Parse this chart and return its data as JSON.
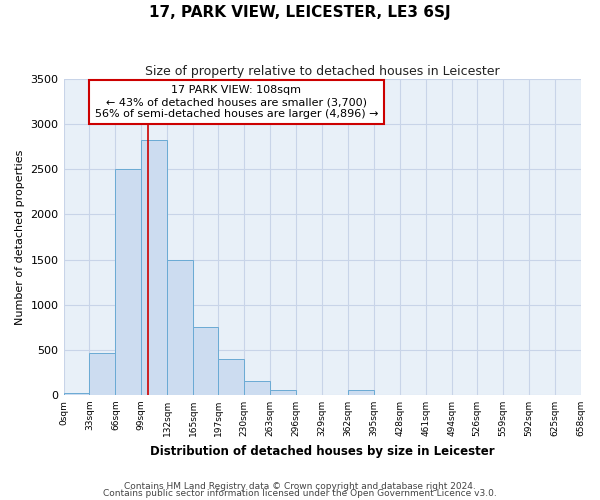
{
  "title": "17, PARK VIEW, LEICESTER, LE3 6SJ",
  "subtitle": "Size of property relative to detached houses in Leicester",
  "xlabel": "Distribution of detached houses by size in Leicester",
  "ylabel": "Number of detached properties",
  "bar_edges": [
    0,
    33,
    66,
    99,
    132,
    165,
    197,
    230,
    263,
    296,
    329,
    362,
    395,
    428,
    461,
    494,
    526,
    559,
    592,
    625,
    658
  ],
  "bar_heights": [
    20,
    470,
    2500,
    2830,
    1500,
    750,
    400,
    155,
    60,
    0,
    0,
    60,
    0,
    0,
    0,
    0,
    0,
    0,
    0,
    0
  ],
  "bar_color": "#ccdcf0",
  "bar_edgecolor": "#6aaad4",
  "property_size": 108,
  "property_label": "17 PARK VIEW: 108sqm",
  "annotation_line1": "← 43% of detached houses are smaller (3,700)",
  "annotation_line2": "56% of semi-detached houses are larger (4,896) →",
  "vline_color": "#cc0000",
  "annotation_box_edgecolor": "#cc0000",
  "annotation_bg": "#ffffff",
  "grid_color": "#c8d4e8",
  "bg_color": "#e8f0f8",
  "ylim": [
    0,
    3500
  ],
  "yticks": [
    0,
    500,
    1000,
    1500,
    2000,
    2500,
    3000,
    3500
  ],
  "xtick_labels": [
    "0sqm",
    "33sqm",
    "66sqm",
    "99sqm",
    "132sqm",
    "165sqm",
    "197sqm",
    "230sqm",
    "263sqm",
    "296sqm",
    "329sqm",
    "362sqm",
    "395sqm",
    "428sqm",
    "461sqm",
    "494sqm",
    "526sqm",
    "559sqm",
    "592sqm",
    "625sqm",
    "658sqm"
  ],
  "footnote1": "Contains HM Land Registry data © Crown copyright and database right 2024.",
  "footnote2": "Contains public sector information licensed under the Open Government Licence v3.0."
}
